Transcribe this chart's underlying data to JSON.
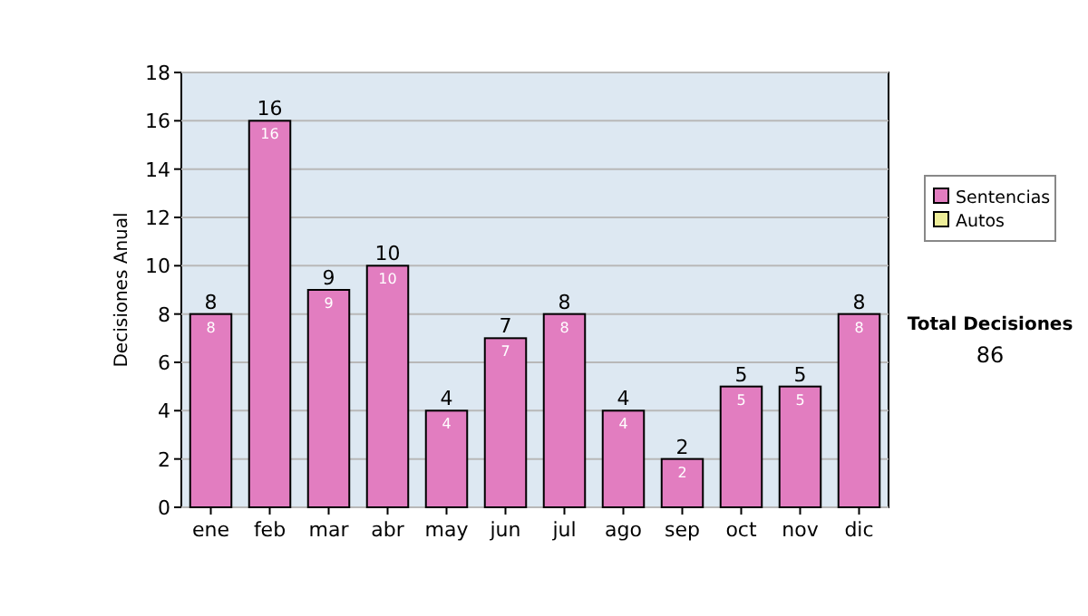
{
  "chart_data": {
    "type": "bar",
    "stacked": true,
    "ylabel": "Decisiones Anual",
    "categories": [
      "ene",
      "feb",
      "mar",
      "abr",
      "may",
      "jun",
      "jul",
      "ago",
      "sep",
      "oct",
      "nov",
      "dic"
    ],
    "series": [
      {
        "name": "Sentencias",
        "color": "#e27dc0",
        "values": [
          8,
          16,
          9,
          10,
          4,
          7,
          8,
          4,
          2,
          5,
          5,
          8
        ],
        "value_labels": [
          "8",
          "16",
          "9",
          "10",
          "4",
          "7",
          "8",
          "4",
          "2",
          "5",
          "5",
          "8"
        ]
      },
      {
        "name": "Autos",
        "color": "#eeee99",
        "values": [
          0,
          0,
          0,
          0,
          0,
          0,
          0,
          0,
          0,
          0,
          0,
          0
        ],
        "value_labels": [
          null,
          null,
          null,
          null,
          null,
          null,
          null,
          null,
          null,
          null,
          null,
          null
        ]
      }
    ],
    "totals": [
      "8",
      "16",
      "9",
      "10",
      "4",
      "7",
      "8",
      "4",
      "2",
      "5",
      "5",
      "8"
    ],
    "ylim": [
      0,
      18
    ],
    "yticks": [
      0,
      2,
      4,
      6,
      8,
      10,
      12,
      14,
      16,
      18
    ],
    "grid": "y",
    "legend": "right",
    "annotations": [
      "Total Decisiones",
      "86"
    ]
  }
}
